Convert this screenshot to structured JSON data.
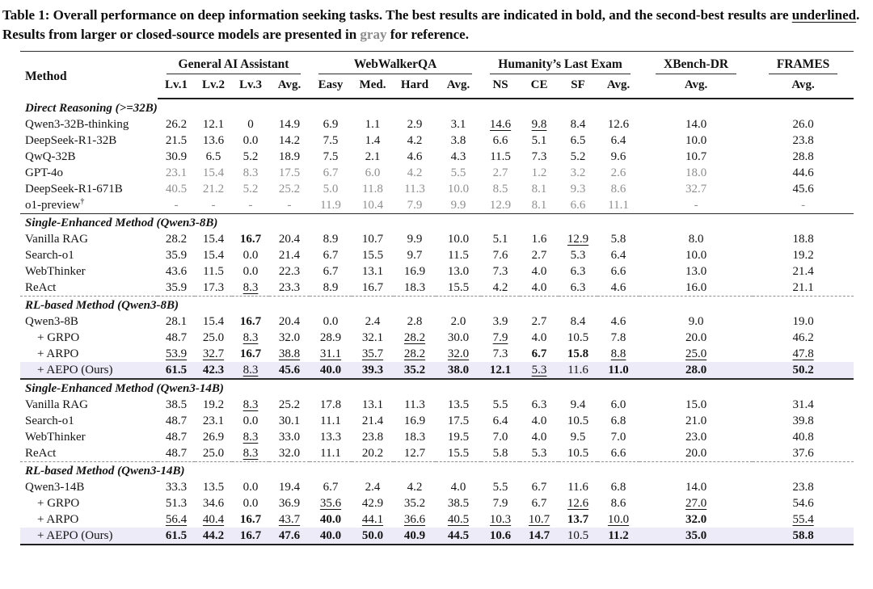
{
  "caption": {
    "prefix": "Table 1: Overall performance on deep information seeking tasks. The best results are indicated in bold, and the second-best results are ",
    "underlined_word": "underlined",
    "middle": ". Results from larger or closed-source models are presented in ",
    "gray_word": "gray",
    "suffix": " for reference."
  },
  "colors": {
    "highlight_row": "#edebf8",
    "gray_text": "#8e8e8e",
    "rule": "#2b2b2b"
  },
  "header": {
    "method": "Method",
    "groups": [
      {
        "label": "General AI Assistant",
        "cols": [
          "Lv.1",
          "Lv.2",
          "Lv.3",
          "Avg."
        ]
      },
      {
        "label": "WebWalkerQA",
        "cols": [
          "Easy",
          "Med.",
          "Hard",
          "Avg."
        ]
      },
      {
        "label": "Humanity’s Last Exam",
        "cols": [
          "NS",
          "CE",
          "SF",
          "Avg."
        ]
      },
      {
        "label": "XBench-DR",
        "cols": [
          "Avg."
        ]
      },
      {
        "label": "FRAMES",
        "cols": [
          "Avg."
        ]
      }
    ]
  },
  "sections": [
    {
      "title": "Direct Reasoning (>=32B)",
      "sep": "solid",
      "rows": [
        {
          "m": "Qwen3-32B-thinking",
          "c": [
            "26.2",
            "12.1",
            "0",
            "14.9",
            "6.9",
            "1.1",
            "2.9",
            "3.1",
            "14.6|u",
            "9.8|u",
            "8.4",
            "12.6",
            "14.0",
            "26.0"
          ]
        },
        {
          "m": "DeepSeek-R1-32B",
          "c": [
            "21.5",
            "13.6",
            "0.0",
            "14.2",
            "7.5",
            "1.4",
            "4.2",
            "3.8",
            "6.6",
            "5.1",
            "6.5",
            "6.4",
            "10.0",
            "23.8"
          ]
        },
        {
          "m": "QwQ-32B",
          "c": [
            "30.9",
            "6.5",
            "5.2",
            "18.9",
            "7.5",
            "2.1",
            "4.6",
            "4.3",
            "11.5",
            "7.3",
            "5.2",
            "9.6",
            "10.7",
            "28.8"
          ]
        },
        {
          "m": "GPT-4o",
          "c": [
            "23.1|g",
            "15.4|g",
            "8.3|g",
            "17.5|g",
            "6.7|g",
            "6.0|g",
            "4.2|g",
            "5.5|g",
            "2.7|g",
            "1.2|g",
            "3.2|g",
            "2.6|g",
            "18.0|g",
            "44.6"
          ]
        },
        {
          "m": "DeepSeek-R1-671B",
          "c": [
            "40.5|g",
            "21.2|g",
            "5.2|g",
            "25.2|g",
            "5.0|g",
            "11.8|g",
            "11.3|g",
            "10.0|g",
            "8.5|g",
            "8.1|g",
            "9.3|g",
            "8.6|g",
            "32.7|g",
            "45.6"
          ]
        },
        {
          "m": "o1-preview",
          "sup": "†",
          "c": [
            "-|g",
            "-|g",
            "-|g",
            "-|g",
            "11.9|g",
            "10.4|g",
            "7.9|g",
            "9.9|g",
            "12.9|g",
            "8.1|g",
            "6.6|g",
            "11.1|g",
            "-|g",
            "-|g"
          ]
        }
      ]
    },
    {
      "title": "Single-Enhanced Method (Qwen3-8B)",
      "sep": "dashed",
      "rows": [
        {
          "m": "Vanilla RAG",
          "c": [
            "28.2",
            "15.4",
            "16.7|b",
            "20.4",
            "8.9",
            "10.7",
            "9.9",
            "10.0",
            "5.1",
            "1.6",
            "12.9|u",
            "5.8",
            "8.0",
            "18.8"
          ]
        },
        {
          "m": "Search-o1",
          "c": [
            "35.9",
            "15.4",
            "0.0",
            "21.4",
            "6.7",
            "15.5",
            "9.7",
            "11.5",
            "7.6",
            "2.7",
            "5.3",
            "6.4",
            "10.0",
            "19.2"
          ]
        },
        {
          "m": "WebThinker",
          "c": [
            "43.6",
            "11.5",
            "0.0",
            "22.3",
            "6.7",
            "13.1",
            "16.9",
            "13.0",
            "7.3",
            "4.0",
            "6.3",
            "6.6",
            "13.0",
            "21.4"
          ]
        },
        {
          "m": "ReAct",
          "c": [
            "35.9",
            "17.3",
            "8.3|u",
            "23.3",
            "8.9",
            "16.7",
            "18.3",
            "15.5",
            "4.2",
            "4.0",
            "6.3",
            "4.6",
            "16.0",
            "21.1"
          ]
        }
      ]
    },
    {
      "title": "RL-based Method (Qwen3-8B)",
      "sep": "thick",
      "rows": [
        {
          "m": "Qwen3-8B",
          "c": [
            "28.1",
            "15.4",
            "16.7|b",
            "20.4",
            "0.0",
            "2.4",
            "2.8",
            "2.0",
            "3.9",
            "2.7",
            "8.4",
            "4.6",
            "9.0",
            "19.0"
          ]
        },
        {
          "m": "+ GRPO",
          "ind": 1,
          "c": [
            "48.7",
            "25.0",
            "8.3|u",
            "32.0",
            "28.9",
            "32.1",
            "28.2|u",
            "30.0",
            "7.9|u",
            "4.0",
            "10.5",
            "7.8",
            "20.0",
            "46.2"
          ]
        },
        {
          "m": "+ ARPO",
          "ind": 1,
          "c": [
            "53.9|u",
            "32.7|u",
            "16.7|b",
            "38.8|u",
            "31.1|u",
            "35.7|u",
            "28.2|u",
            "32.0|u",
            "7.3",
            "6.7|b",
            "15.8|b",
            "8.8|u",
            "25.0|u",
            "47.8|u"
          ]
        },
        {
          "m": "+ AEPO (Ours)",
          "ind": 1,
          "hl": 1,
          "c": [
            "61.5|b",
            "42.3|b",
            "8.3|u",
            "45.6|b",
            "40.0|b",
            "39.3|b",
            "35.2|b",
            "38.0|b",
            "12.1|b",
            "5.3|u",
            "11.6",
            "11.0|b",
            "28.0|b",
            "50.2|b"
          ]
        }
      ]
    },
    {
      "title": "Single-Enhanced Method (Qwen3-14B)",
      "sep": "dashed",
      "rows": [
        {
          "m": "Vanilla RAG",
          "c": [
            "38.5",
            "19.2",
            "8.3|u",
            "25.2",
            "17.8",
            "13.1",
            "11.3",
            "13.5",
            "5.5",
            "6.3",
            "9.4",
            "6.0",
            "15.0",
            "31.4"
          ]
        },
        {
          "m": "Search-o1",
          "c": [
            "48.7",
            "23.1",
            "0.0",
            "30.1",
            "11.1",
            "21.4",
            "16.9",
            "17.5",
            "6.4",
            "4.0",
            "10.5",
            "6.8",
            "21.0",
            "39.8"
          ]
        },
        {
          "m": "WebThinker",
          "c": [
            "48.7",
            "26.9",
            "8.3|u",
            "33.0",
            "13.3",
            "23.8",
            "18.3",
            "19.5",
            "7.0",
            "4.0",
            "9.5",
            "7.0",
            "23.0",
            "40.8"
          ]
        },
        {
          "m": "ReAct",
          "c": [
            "48.7",
            "25.0",
            "8.3|u",
            "32.0",
            "11.1",
            "20.2",
            "12.7",
            "15.5",
            "5.8",
            "5.3",
            "10.5",
            "6.6",
            "20.0",
            "37.6"
          ]
        }
      ]
    },
    {
      "title": "RL-based Method (Qwen3-14B)",
      "sep": "",
      "rows": [
        {
          "m": "Qwen3-14B",
          "c": [
            "33.3",
            "13.5",
            "0.0",
            "19.4",
            "6.7",
            "2.4",
            "4.2",
            "4.0",
            "5.5",
            "6.7",
            "11.6",
            "6.8",
            "14.0",
            "23.8"
          ]
        },
        {
          "m": "+ GRPO",
          "ind": 1,
          "c": [
            "51.3",
            "34.6",
            "0.0",
            "36.9",
            "35.6|u",
            "42.9",
            "35.2",
            "38.5",
            "7.9",
            "6.7",
            "12.6|u",
            "8.6",
            "27.0|u",
            "54.6"
          ]
        },
        {
          "m": "+ ARPO",
          "ind": 1,
          "c": [
            "56.4|u",
            "40.4|u",
            "16.7|b",
            "43.7|u",
            "40.0|b",
            "44.1|u",
            "36.6|u",
            "40.5|u",
            "10.3|u",
            "10.7|u",
            "13.7|b",
            "10.0|u",
            "32.0|b",
            "55.4|u"
          ]
        },
        {
          "m": "+ AEPO (Ours)",
          "ind": 1,
          "hl": 1,
          "c": [
            "61.5|b",
            "44.2|b",
            "16.7|b",
            "47.6|b",
            "40.0|b",
            "50.0|b",
            "40.9|b",
            "44.5|b",
            "10.6|b",
            "14.7|b",
            "10.5",
            "11.2|b",
            "35.0|b",
            "58.8|b"
          ]
        }
      ]
    }
  ]
}
